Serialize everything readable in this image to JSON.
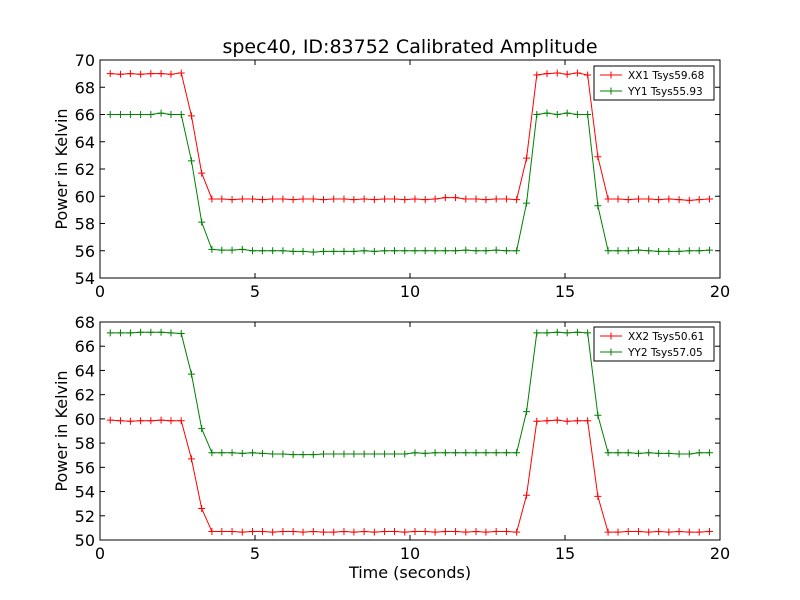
{
  "figure": {
    "title": "spec40, ID:83752 Calibrated Amplitude",
    "xlabel": "Time (seconds)"
  },
  "chart_data": [
    {
      "type": "line",
      "title": "spec40, ID:83752 Calibrated Amplitude",
      "xlabel": "",
      "ylabel": "Power in Kelvin",
      "xlim": [
        0,
        20
      ],
      "ylim": [
        54,
        70
      ],
      "xticks": [
        0,
        5,
        10,
        15,
        20
      ],
      "yticks": [
        54,
        56,
        58,
        60,
        62,
        64,
        66,
        68,
        70
      ],
      "grid": false,
      "legend": "top-right",
      "x": [
        0.33,
        0.66,
        0.98,
        1.31,
        1.64,
        1.97,
        2.29,
        2.62,
        2.95,
        3.28,
        3.61,
        3.93,
        4.26,
        4.59,
        4.92,
        5.24,
        5.57,
        5.9,
        6.23,
        6.55,
        6.88,
        7.21,
        7.54,
        7.87,
        8.19,
        8.52,
        8.85,
        9.18,
        9.5,
        9.83,
        10.16,
        10.49,
        10.81,
        11.14,
        11.47,
        11.8,
        12.13,
        12.45,
        12.78,
        13.11,
        13.44,
        13.76,
        14.09,
        14.42,
        14.75,
        15.07,
        15.4,
        15.73,
        16.06,
        16.39,
        16.71,
        17.04,
        17.37,
        17.7,
        18.02,
        18.35,
        18.68,
        19.01,
        19.33,
        19.66
      ],
      "series": [
        {
          "name": "XX1 Tsys59.68",
          "color": "#ff0000",
          "values": [
            69.0,
            68.95,
            69.0,
            68.95,
            69.0,
            69.0,
            68.95,
            69.05,
            65.9,
            61.7,
            59.8,
            59.8,
            59.75,
            59.8,
            59.8,
            59.75,
            59.8,
            59.8,
            59.75,
            59.8,
            59.8,
            59.75,
            59.8,
            59.8,
            59.75,
            59.8,
            59.75,
            59.8,
            59.8,
            59.75,
            59.8,
            59.75,
            59.8,
            59.9,
            59.9,
            59.8,
            59.8,
            59.75,
            59.8,
            59.8,
            59.75,
            62.8,
            68.9,
            69.0,
            69.05,
            68.95,
            69.05,
            68.9,
            62.9,
            59.8,
            59.8,
            59.75,
            59.8,
            59.8,
            59.75,
            59.8,
            59.75,
            59.7,
            59.75,
            59.8
          ]
        },
        {
          "name": "YY1 Tsys55.93",
          "color": "#008000",
          "values": [
            66.0,
            66.0,
            66.0,
            66.0,
            66.0,
            66.1,
            66.0,
            66.0,
            62.6,
            58.1,
            56.1,
            56.05,
            56.05,
            56.1,
            56.0,
            56.0,
            56.0,
            56.0,
            55.95,
            55.95,
            55.9,
            55.95,
            55.95,
            55.95,
            55.95,
            56.0,
            55.95,
            56.0,
            56.0,
            56.0,
            56.0,
            56.0,
            56.0,
            56.0,
            56.0,
            56.05,
            56.0,
            56.0,
            56.05,
            56.0,
            56.0,
            59.5,
            66.0,
            66.1,
            66.0,
            66.1,
            66.0,
            66.0,
            59.3,
            56.0,
            56.0,
            56.0,
            56.05,
            56.0,
            55.95,
            55.95,
            55.95,
            56.0,
            56.0,
            56.05
          ]
        }
      ]
    },
    {
      "type": "line",
      "title": "",
      "xlabel": "Time (seconds)",
      "ylabel": "Power in Kelvin",
      "xlim": [
        0,
        20
      ],
      "ylim": [
        50,
        68
      ],
      "xticks": [
        0,
        5,
        10,
        15,
        20
      ],
      "yticks": [
        50,
        52,
        54,
        56,
        58,
        60,
        62,
        64,
        66,
        68
      ],
      "grid": false,
      "legend": "top-right",
      "x": [
        0.33,
        0.66,
        0.98,
        1.31,
        1.64,
        1.97,
        2.29,
        2.62,
        2.95,
        3.28,
        3.61,
        3.93,
        4.26,
        4.59,
        4.92,
        5.24,
        5.57,
        5.9,
        6.23,
        6.55,
        6.88,
        7.21,
        7.54,
        7.87,
        8.19,
        8.52,
        8.85,
        9.18,
        9.5,
        9.83,
        10.16,
        10.49,
        10.81,
        11.14,
        11.47,
        11.8,
        12.13,
        12.45,
        12.78,
        13.11,
        13.44,
        13.76,
        14.09,
        14.42,
        14.75,
        15.07,
        15.4,
        15.73,
        16.06,
        16.39,
        16.71,
        17.04,
        17.37,
        17.7,
        18.02,
        18.35,
        18.68,
        19.01,
        19.33,
        19.66
      ],
      "series": [
        {
          "name": "XX2 Tsys50.61",
          "color": "#ff0000",
          "values": [
            59.9,
            59.85,
            59.8,
            59.85,
            59.85,
            59.9,
            59.85,
            59.85,
            56.7,
            52.6,
            50.7,
            50.7,
            50.7,
            50.65,
            50.7,
            50.7,
            50.65,
            50.7,
            50.7,
            50.65,
            50.7,
            50.65,
            50.65,
            50.7,
            50.65,
            50.7,
            50.65,
            50.7,
            50.7,
            50.65,
            50.7,
            50.7,
            50.65,
            50.7,
            50.7,
            50.65,
            50.7,
            50.65,
            50.7,
            50.7,
            50.65,
            53.7,
            59.8,
            59.85,
            59.9,
            59.8,
            59.85,
            59.85,
            53.6,
            50.65,
            50.65,
            50.7,
            50.7,
            50.65,
            50.7,
            50.65,
            50.7,
            50.65,
            50.65,
            50.7
          ]
        },
        {
          "name": "YY2 Tsys57.05",
          "color": "#008000",
          "values": [
            67.1,
            67.1,
            67.1,
            67.15,
            67.15,
            67.15,
            67.1,
            67.05,
            63.7,
            59.2,
            57.2,
            57.2,
            57.2,
            57.15,
            57.2,
            57.15,
            57.1,
            57.1,
            57.05,
            57.05,
            57.05,
            57.1,
            57.1,
            57.1,
            57.1,
            57.1,
            57.1,
            57.1,
            57.1,
            57.1,
            57.2,
            57.15,
            57.2,
            57.2,
            57.2,
            57.2,
            57.2,
            57.2,
            57.2,
            57.2,
            57.2,
            60.6,
            67.1,
            67.1,
            67.15,
            67.1,
            67.15,
            67.1,
            60.3,
            57.2,
            57.2,
            57.2,
            57.15,
            57.2,
            57.15,
            57.15,
            57.1,
            57.1,
            57.2,
            57.2
          ]
        }
      ]
    }
  ]
}
